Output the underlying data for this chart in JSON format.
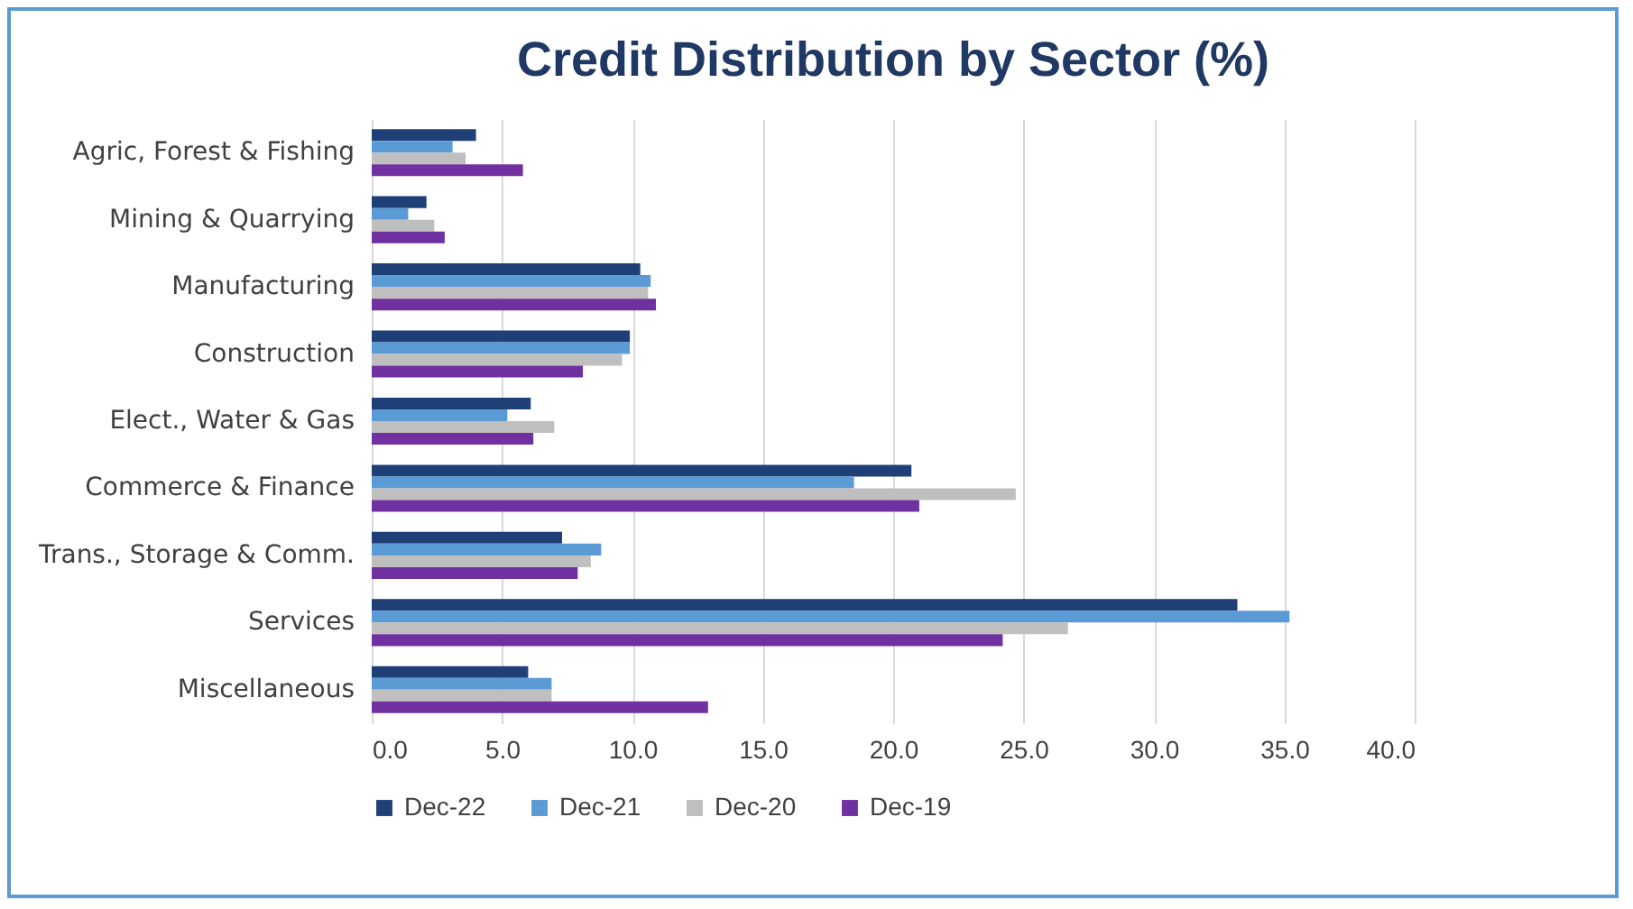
{
  "chart_data": {
    "type": "bar",
    "orientation": "horizontal",
    "title": "Credit Distribution by Sector (%)",
    "categories": [
      "Agric, Forest & Fishing",
      "Mining & Quarrying",
      "Manufacturing",
      "Construction",
      "Elect., Water & Gas",
      "Commerce & Finance",
      "Trans., Storage & Comm.",
      "Services",
      "Miscellaneous"
    ],
    "series": [
      {
        "name": "Dec-22",
        "color": "#1f3f77",
        "values": [
          4.0,
          2.1,
          10.3,
          9.9,
          6.1,
          20.7,
          7.3,
          33.2,
          6.0
        ]
      },
      {
        "name": "Dec-21",
        "color": "#5b9bd5",
        "values": [
          3.1,
          1.4,
          10.7,
          9.9,
          5.2,
          18.5,
          8.8,
          35.2,
          6.9
        ]
      },
      {
        "name": "Dec-20",
        "color": "#bfbfbf",
        "values": [
          3.6,
          2.4,
          10.6,
          9.6,
          7.0,
          24.7,
          8.4,
          26.7,
          6.9
        ]
      },
      {
        "name": "Dec-19",
        "color": "#7030a0",
        "values": [
          5.8,
          2.8,
          10.9,
          8.1,
          6.2,
          21.0,
          7.9,
          24.2,
          12.9
        ]
      }
    ],
    "xlim": [
      0,
      40
    ],
    "xticks": [
      {
        "value": 0,
        "label": "0.0"
      },
      {
        "value": 5,
        "label": "5.0"
      },
      {
        "value": 10,
        "label": "10.0"
      },
      {
        "value": 15,
        "label": "15.0"
      },
      {
        "value": 20,
        "label": "20.0"
      },
      {
        "value": 25,
        "label": "25.0"
      },
      {
        "value": 30,
        "label": "30.0"
      },
      {
        "value": 35,
        "label": "35.0"
      },
      {
        "value": 40,
        "label": "40.0"
      }
    ],
    "grid": "x",
    "legend": "bottom"
  }
}
